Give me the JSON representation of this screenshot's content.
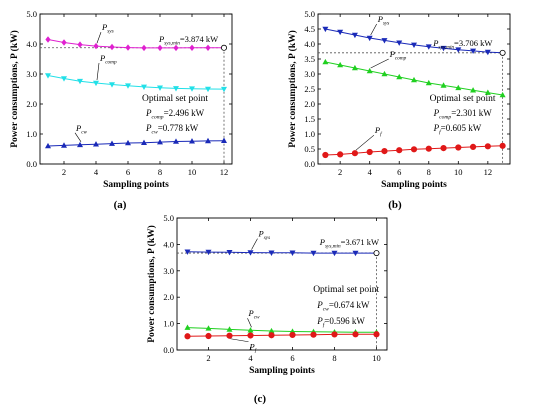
{
  "chart_data": [
    {
      "type": "line",
      "panel_label": "(a)",
      "xlabel": "Sampling points",
      "ylabel": "Power consumptions, P (kW)",
      "xlim": [
        0.5,
        12.5
      ],
      "ylim": [
        0,
        5.0
      ],
      "xticks": [
        2,
        4,
        6,
        8,
        10,
        12
      ],
      "yticks": [
        0.0,
        1.0,
        2.0,
        3.0,
        4.0,
        5.0
      ],
      "x": [
        1,
        2,
        3,
        4,
        5,
        6,
        7,
        8,
        9,
        10,
        11,
        12
      ],
      "series": [
        {
          "label_main": "P",
          "label_sub": "sys",
          "marker": "diamond",
          "color": "#e020d0",
          "values": [
            4.15,
            4.05,
            3.98,
            3.93,
            3.9,
            3.88,
            3.87,
            3.87,
            3.87,
            3.874,
            3.874,
            3.874
          ]
        },
        {
          "label_main": "P",
          "label_sub": "comp",
          "marker": "tri-down",
          "color": "#22e0e8",
          "values": [
            2.95,
            2.85,
            2.76,
            2.7,
            2.65,
            2.61,
            2.57,
            2.54,
            2.52,
            2.51,
            2.5,
            2.496
          ]
        },
        {
          "label_main": "P",
          "label_sub": "cw",
          "marker": "tri-up",
          "color": "#1a2ab8",
          "values": [
            0.6,
            0.62,
            0.64,
            0.66,
            0.68,
            0.7,
            0.71,
            0.73,
            0.75,
            0.76,
            0.77,
            0.778
          ]
        }
      ],
      "annotations": {
        "sys_min": {
          "main": "P",
          "sub": "sys,min",
          "value": "=3.874 kW"
        },
        "optimal": "Optimal set point",
        "lines": [
          {
            "main": "P",
            "sub": "comp",
            "value": "=2.496 kW"
          },
          {
            "main": "P",
            "sub": "cw",
            "value": "=0.778 kW"
          }
        ]
      }
    },
    {
      "type": "line",
      "panel_label": "(b)",
      "xlabel": "Sampling points",
      "ylabel": "Power consumptions, P (kW)",
      "xlim": [
        0.5,
        13.5
      ],
      "ylim": [
        0,
        5.0
      ],
      "xticks": [
        2,
        4,
        6,
        8,
        10,
        12
      ],
      "yticks": [
        0.0,
        0.5,
        1.0,
        1.5,
        2.0,
        2.5,
        3.0,
        3.5,
        4.0,
        4.5,
        5.0
      ],
      "x": [
        1,
        2,
        3,
        4,
        5,
        6,
        7,
        8,
        9,
        10,
        11,
        12,
        13
      ],
      "series": [
        {
          "label_main": "P",
          "label_sub": "sys",
          "marker": "tri-down",
          "color": "#1a2ab8",
          "values": [
            4.5,
            4.4,
            4.3,
            4.2,
            4.12,
            4.04,
            3.97,
            3.91,
            3.86,
            3.81,
            3.77,
            3.73,
            3.706
          ]
        },
        {
          "label_main": "P",
          "label_sub": "comp",
          "marker": "tri-up",
          "color": "#20d020",
          "values": [
            3.4,
            3.3,
            3.2,
            3.1,
            3.0,
            2.9,
            2.8,
            2.7,
            2.62,
            2.54,
            2.46,
            2.38,
            2.301
          ]
        },
        {
          "label_main": "P",
          "label_sub": "f",
          "marker": "circle",
          "color": "#e01818",
          "values": [
            0.3,
            0.32,
            0.36,
            0.4,
            0.43,
            0.46,
            0.49,
            0.51,
            0.53,
            0.55,
            0.57,
            0.59,
            0.605
          ]
        }
      ],
      "annotations": {
        "sys_min": {
          "main": "P",
          "sub": "sys,min",
          "value": "=3.706 kW"
        },
        "optimal": "Optimal set point",
        "lines": [
          {
            "main": "P",
            "sub": "comp",
            "value": "=2.301 kW"
          },
          {
            "main": "P",
            "sub": "f",
            "value": "=0.605 kW"
          }
        ]
      }
    },
    {
      "type": "line",
      "panel_label": "(c)",
      "xlabel": "Sampling points",
      "ylabel": "Power consumptions, P (kW)",
      "xlim": [
        0.5,
        10.5
      ],
      "ylim": [
        0,
        5.0
      ],
      "xticks": [
        2,
        4,
        6,
        8,
        10
      ],
      "yticks": [
        0.0,
        1.0,
        2.0,
        3.0,
        4.0,
        5.0
      ],
      "x": [
        1,
        2,
        3,
        4,
        5,
        6,
        7,
        8,
        9,
        10
      ],
      "series": [
        {
          "label_main": "P",
          "label_sub": "sys",
          "marker": "tri-down",
          "color": "#1a2ab8",
          "values": [
            3.72,
            3.71,
            3.7,
            3.69,
            3.68,
            3.68,
            3.67,
            3.671,
            3.671,
            3.671
          ]
        },
        {
          "label_main": "P",
          "label_sub": "cw",
          "marker": "tri-up",
          "color": "#20d020",
          "values": [
            0.85,
            0.82,
            0.78,
            0.75,
            0.72,
            0.7,
            0.69,
            0.68,
            0.676,
            0.674
          ]
        },
        {
          "label_main": "P",
          "label_sub": "f",
          "marker": "circle",
          "color": "#e01818",
          "values": [
            0.52,
            0.53,
            0.54,
            0.55,
            0.56,
            0.57,
            0.58,
            0.59,
            0.594,
            0.596
          ]
        }
      ],
      "annotations": {
        "sys_min": {
          "main": "P",
          "sub": "sys,min",
          "value": "=3.671 kW"
        },
        "optimal": "Optimal set point",
        "lines": [
          {
            "main": "P",
            "sub": "cw",
            "value": "=0.674 kW"
          },
          {
            "main": "P",
            "sub": "f",
            "value": "=0.596 kW"
          }
        ]
      }
    }
  ]
}
